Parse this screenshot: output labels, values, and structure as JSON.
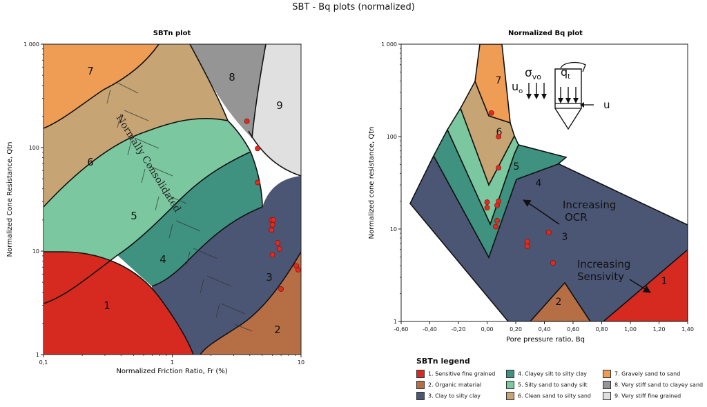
{
  "title": "SBT - Bq plots (normalized)",
  "colors": {
    "z1": "#d62a20",
    "z2": "#b66e45",
    "z3": "#4b5675",
    "z4": "#3e927f",
    "z5": "#7bc79f",
    "z6": "#c6a474",
    "z7": "#ef9c55",
    "z8": "#959595",
    "z9": "#e0e0e0",
    "point": "#e22a1e"
  },
  "legend": {
    "title": "SBTn legend",
    "items": [
      {
        "zone": "1",
        "label": "1. Sensitive fine grained",
        "color": "#d62a20"
      },
      {
        "zone": "2",
        "label": "2. Organic material",
        "color": "#b66e45"
      },
      {
        "zone": "3",
        "label": "3. Clay to silty clay",
        "color": "#4b5675"
      },
      {
        "zone": "4",
        "label": "4. Clayey silt to silty clay",
        "color": "#3e927f"
      },
      {
        "zone": "5",
        "label": "5. Silty sand to sandy silt",
        "color": "#7bc79f"
      },
      {
        "zone": "6",
        "label": "6. Clean sand to silty sand",
        "color": "#c6a474"
      },
      {
        "zone": "7",
        "label": "7. Gravely sand to sand",
        "color": "#ef9c55"
      },
      {
        "zone": "8",
        "label": "8. Very stiff sand to clayey sand",
        "color": "#959595"
      },
      {
        "zone": "9",
        "label": "9. Very stiff fine grained",
        "color": "#e0e0e0"
      }
    ]
  },
  "chart_data": [
    {
      "type": "scatter",
      "title": "SBTn plot",
      "xlabel": "Normalized Friction Ratio, Fr (%)",
      "ylabel": "Normalized Cone Resistance, Qtn",
      "xscale": "log",
      "yscale": "log",
      "xlim": [
        0.1,
        10
      ],
      "ylim": [
        1,
        1000
      ],
      "x_ticks": [
        "0,1",
        "1",
        "10"
      ],
      "y_ticks": [
        "1",
        "10",
        "100",
        "1 000"
      ],
      "zone_labels": [
        "1",
        "2",
        "3",
        "4",
        "5",
        "6",
        "7",
        "8",
        "9"
      ],
      "annotation": "Normally Consolidated",
      "points": [
        {
          "x": 3.8,
          "y": 180
        },
        {
          "x": 4.6,
          "y": 98
        },
        {
          "x": 4.6,
          "y": 46
        },
        {
          "x": 5.9,
          "y": 20
        },
        {
          "x": 6.1,
          "y": 20
        },
        {
          "x": 6.0,
          "y": 18
        },
        {
          "x": 5.9,
          "y": 16
        },
        {
          "x": 6.6,
          "y": 12
        },
        {
          "x": 6.8,
          "y": 10.5
        },
        {
          "x": 6.0,
          "y": 9.2
        },
        {
          "x": 9.2,
          "y": 7.2
        },
        {
          "x": 9.5,
          "y": 6.6
        },
        {
          "x": 7.0,
          "y": 4.3
        }
      ]
    },
    {
      "type": "scatter",
      "title": "Normalized Bq plot",
      "xlabel": "Pore pressure ratio, Bq",
      "ylabel": "Normalized cone resistance, Qtn",
      "xscale": "linear",
      "yscale": "log",
      "xlim": [
        -0.6,
        1.4
      ],
      "ylim": [
        1,
        1000
      ],
      "x_ticks": [
        "-0,60",
        "-0,40",
        "-0,20",
        "0,00",
        "0,20",
        "0,40",
        "0,60",
        "0,80",
        "1,00",
        "1,20",
        "1,40"
      ],
      "y_ticks": [
        "1",
        "10",
        "100",
        "1 000"
      ],
      "zone_labels": [
        "1",
        "2",
        "3",
        "4",
        "5",
        "6",
        "7"
      ],
      "annotations": [
        "Increasing OCR",
        "Increasing Sensivity"
      ],
      "inset_labels": {
        "uo": "u",
        "uo_sub": "o",
        "sigma": "σ",
        "sigma_sub": "vo",
        "qt": "q",
        "qt_sub": "t",
        "u": "u"
      },
      "points": [
        {
          "x": 0.03,
          "y": 180
        },
        {
          "x": 0.08,
          "y": 100
        },
        {
          "x": 0.08,
          "y": 46
        },
        {
          "x": 0.08,
          "y": 20
        },
        {
          "x": 0.0,
          "y": 19.5
        },
        {
          "x": 0.0,
          "y": 17
        },
        {
          "x": 0.07,
          "y": 18
        },
        {
          "x": 0.07,
          "y": 12.3
        },
        {
          "x": 0.06,
          "y": 10.6
        },
        {
          "x": 0.43,
          "y": 9.2
        },
        {
          "x": 0.28,
          "y": 7.3
        },
        {
          "x": 0.28,
          "y": 6.5
        },
        {
          "x": 0.46,
          "y": 4.3
        }
      ]
    }
  ]
}
